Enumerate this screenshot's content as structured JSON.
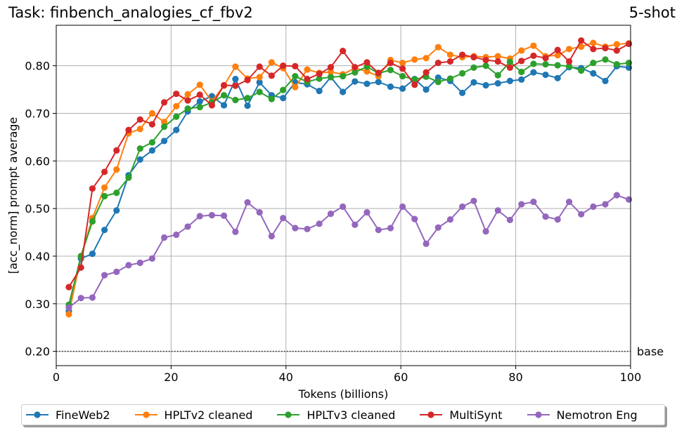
{
  "chart_data": {
    "type": "line",
    "title": "Task: finbench_analogies_cf_fbv2",
    "subtitle": "5-shot",
    "xlabel": "Tokens (billions)",
    "ylabel": "[acc_norm] prompt average",
    "xlim": [
      0,
      100
    ],
    "ylim": [
      0.17,
      0.885
    ],
    "xticks": [
      0,
      20,
      40,
      60,
      80,
      100
    ],
    "xtick_labels": [
      "0",
      "20",
      "40",
      "60",
      "80",
      "100"
    ],
    "yticks": [
      0.2,
      0.3,
      0.4,
      0.5,
      0.6,
      0.7,
      0.8
    ],
    "ytick_labels": [
      "0.20",
      "0.30",
      "0.40",
      "0.50",
      "0.60",
      "0.70",
      "0.80"
    ],
    "grid": true,
    "baseline": {
      "value": 0.2,
      "label": "base"
    },
    "legend_position": "bottom",
    "x": [
      2.2,
      4.3,
      6.3,
      8.4,
      10.5,
      12.6,
      14.6,
      16.7,
      18.8,
      20.9,
      22.9,
      25.0,
      27.1,
      29.2,
      31.2,
      33.3,
      35.4,
      37.5,
      39.5,
      41.6,
      43.7,
      45.8,
      47.8,
      49.9,
      52.0,
      54.1,
      56.1,
      58.2,
      60.3,
      62.4,
      64.4,
      66.5,
      68.6,
      70.7,
      72.7,
      74.8,
      76.9,
      79.0,
      81.0,
      83.1,
      85.2,
      87.3,
      89.3,
      91.4,
      93.5,
      95.6,
      97.6,
      99.7
    ],
    "series": [
      {
        "name": "FineWeb2",
        "color": "#1f77b4",
        "values": [
          0.284,
          0.395,
          0.405,
          0.455,
          0.496,
          0.57,
          0.603,
          0.622,
          0.642,
          0.665,
          0.704,
          0.725,
          0.736,
          0.717,
          0.772,
          0.716,
          0.765,
          0.738,
          0.732,
          0.765,
          0.761,
          0.747,
          0.776,
          0.745,
          0.767,
          0.762,
          0.766,
          0.756,
          0.752,
          0.772,
          0.75,
          0.775,
          0.768,
          0.743,
          0.765,
          0.759,
          0.763,
          0.768,
          0.771,
          0.786,
          0.781,
          0.774,
          0.797,
          0.795,
          0.784,
          0.768,
          0.799,
          0.796
        ]
      },
      {
        "name": "HPLTv2 cleaned",
        "color": "#ff7f0e",
        "values": [
          0.278,
          0.4,
          0.48,
          0.544,
          0.582,
          0.658,
          0.667,
          0.7,
          0.682,
          0.715,
          0.74,
          0.76,
          0.725,
          0.758,
          0.798,
          0.773,
          0.776,
          0.807,
          0.795,
          0.755,
          0.792,
          0.785,
          0.787,
          0.782,
          0.795,
          0.788,
          0.778,
          0.812,
          0.806,
          0.813,
          0.816,
          0.839,
          0.823,
          0.818,
          0.82,
          0.818,
          0.82,
          0.815,
          0.832,
          0.842,
          0.82,
          0.822,
          0.835,
          0.84,
          0.848,
          0.84,
          0.845,
          0.847
        ]
      },
      {
        "name": "HPLTv3 cleaned",
        "color": "#2ca02c",
        "values": [
          0.298,
          0.4,
          0.473,
          0.526,
          0.533,
          0.565,
          0.626,
          0.639,
          0.672,
          0.693,
          0.71,
          0.713,
          0.723,
          0.738,
          0.728,
          0.732,
          0.745,
          0.73,
          0.749,
          0.778,
          0.766,
          0.773,
          0.776,
          0.778,
          0.786,
          0.798,
          0.784,
          0.791,
          0.778,
          0.771,
          0.777,
          0.766,
          0.773,
          0.784,
          0.796,
          0.8,
          0.78,
          0.808,
          0.787,
          0.804,
          0.803,
          0.801,
          0.799,
          0.79,
          0.806,
          0.813,
          0.803,
          0.806
        ]
      },
      {
        "name": "MultiSynt",
        "color": "#d62728",
        "values": [
          0.335,
          0.376,
          0.542,
          0.577,
          0.622,
          0.665,
          0.687,
          0.677,
          0.723,
          0.741,
          0.727,
          0.739,
          0.717,
          0.759,
          0.758,
          0.77,
          0.798,
          0.779,
          0.8,
          0.799,
          0.772,
          0.783,
          0.797,
          0.831,
          0.797,
          0.807,
          0.785,
          0.806,
          0.794,
          0.76,
          0.786,
          0.806,
          0.809,
          0.823,
          0.818,
          0.812,
          0.809,
          0.796,
          0.81,
          0.821,
          0.816,
          0.833,
          0.809,
          0.853,
          0.835,
          0.837,
          0.832,
          0.846
        ]
      },
      {
        "name": "Nemotron Eng",
        "color": "#9467bd",
        "values": [
          0.292,
          0.312,
          0.313,
          0.36,
          0.367,
          0.381,
          0.386,
          0.395,
          0.439,
          0.445,
          0.462,
          0.484,
          0.486,
          0.485,
          0.451,
          0.513,
          0.492,
          0.442,
          0.48,
          0.459,
          0.457,
          0.468,
          0.489,
          0.504,
          0.466,
          0.492,
          0.455,
          0.459,
          0.504,
          0.478,
          0.426,
          0.46,
          0.477,
          0.504,
          0.516,
          0.452,
          0.496,
          0.476,
          0.509,
          0.514,
          0.483,
          0.477,
          0.514,
          0.488,
          0.504,
          0.509,
          0.528,
          0.519
        ]
      }
    ]
  }
}
